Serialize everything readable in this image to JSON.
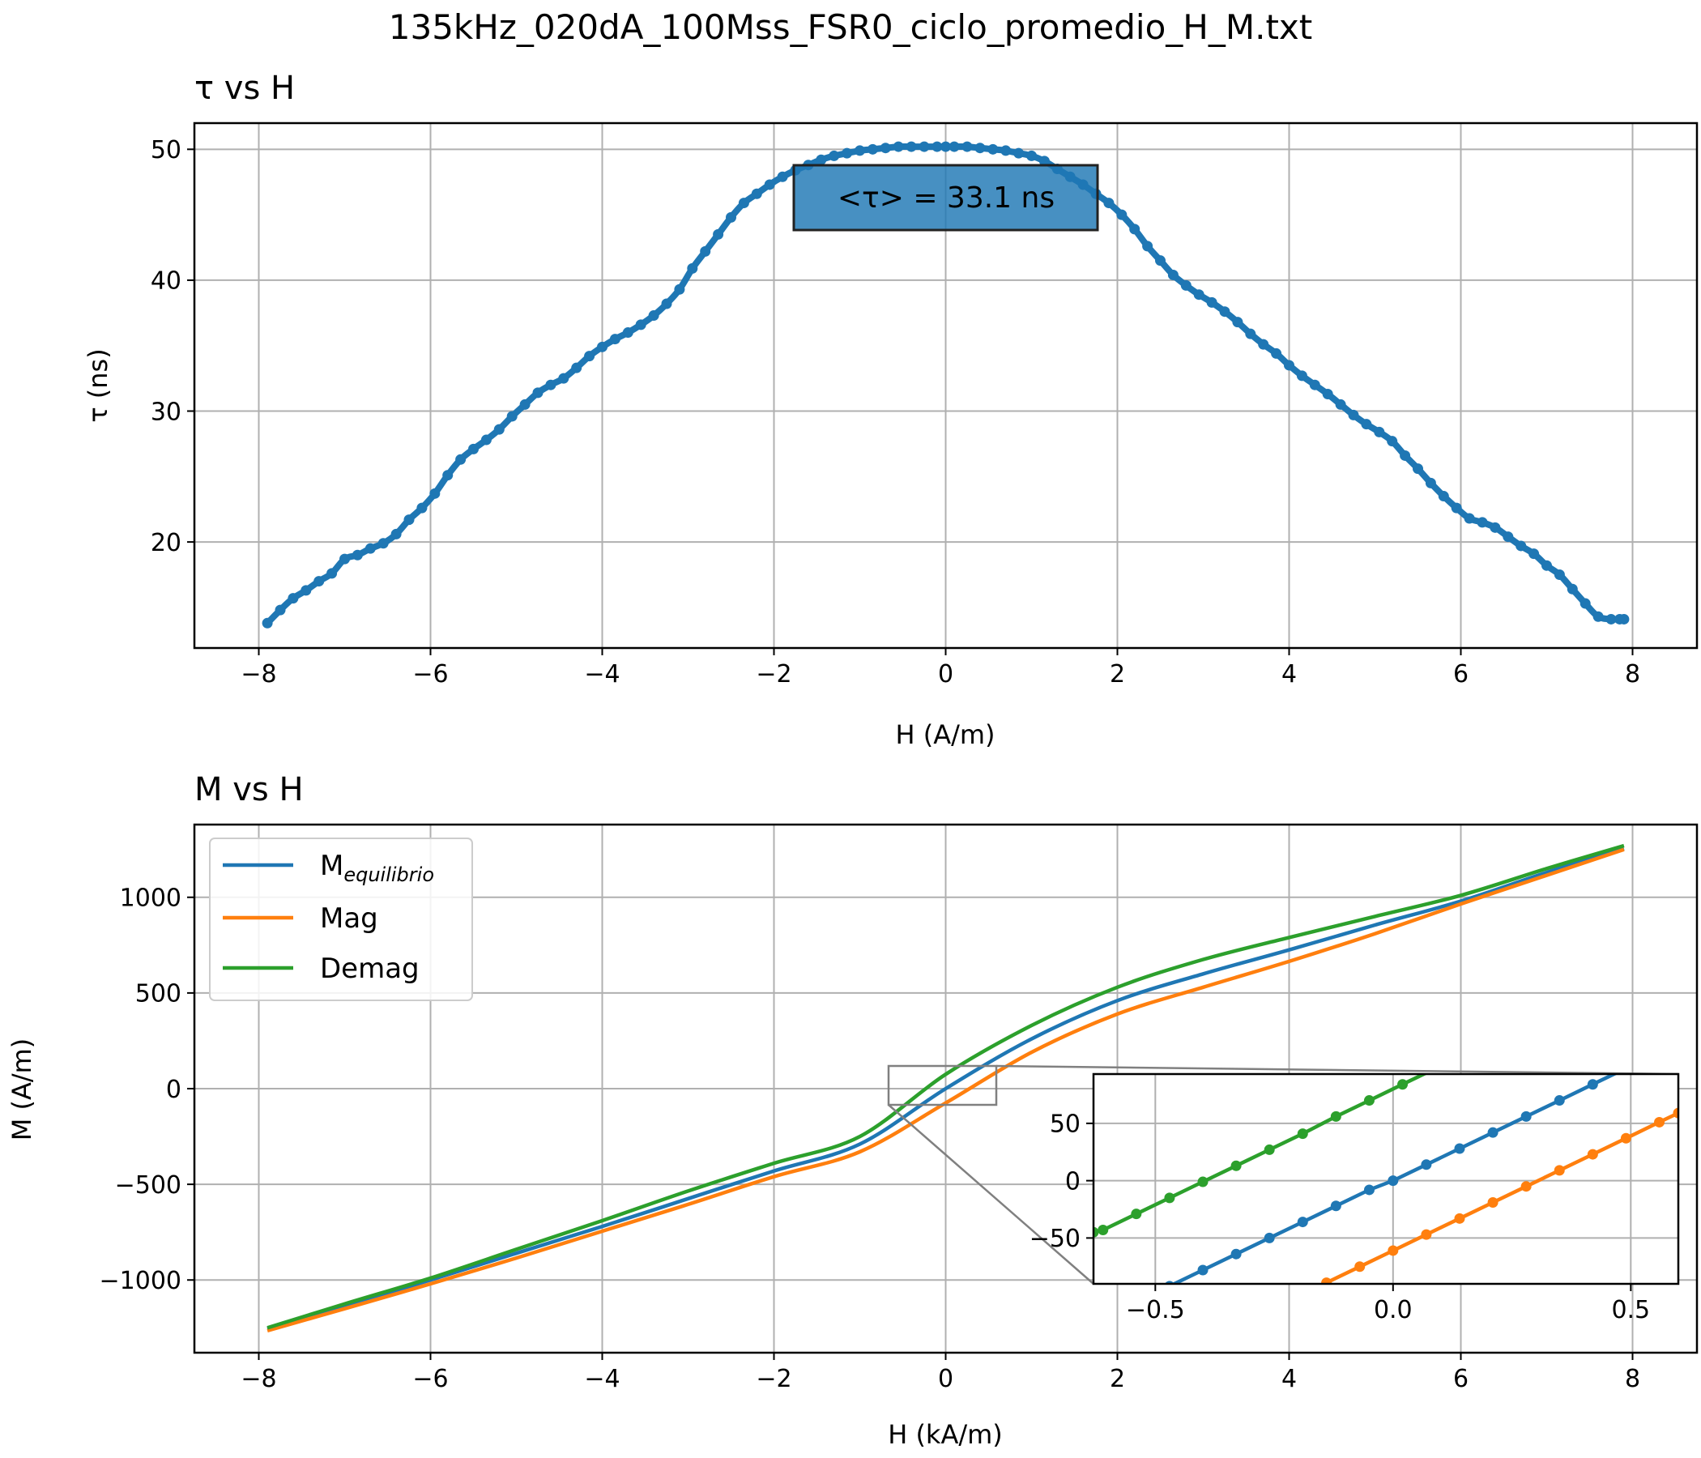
{
  "suptitle": "135kHz_020dA_100Mss_FSR0_ciclo_promedio_H_M.txt",
  "colors": {
    "blue": "#1f77b4",
    "orange": "#ff7f0e",
    "green": "#2ca02c",
    "grid": "#b0b0b0"
  },
  "chart_data": [
    {
      "type": "scatter",
      "title": "τ vs H",
      "xlabel": "H (A/m)",
      "ylabel": "τ (ns)",
      "xlim": [
        -8.75,
        8.75
      ],
      "ylim": [
        11.9,
        52.0
      ],
      "xticks": [
        -8,
        -6,
        -4,
        -2,
        0,
        2,
        4,
        6,
        8
      ],
      "yticks": [
        20,
        30,
        40,
        50
      ],
      "grid": true,
      "annotation": "<τ> = 33.1 ns",
      "series": [
        {
          "color": "#1f77b4",
          "x": [
            -7.9,
            -7.75,
            -7.6,
            -7.45,
            -7.3,
            -7.15,
            -7.0,
            -6.85,
            -6.7,
            -6.55,
            -6.4,
            -6.25,
            -6.1,
            -5.95,
            -5.8,
            -5.65,
            -5.5,
            -5.35,
            -5.2,
            -5.05,
            -4.9,
            -4.75,
            -4.6,
            -4.45,
            -4.3,
            -4.15,
            -4.0,
            -3.85,
            -3.7,
            -3.55,
            -3.4,
            -3.25,
            -3.1,
            -2.95,
            -2.8,
            -2.65,
            -2.5,
            -2.35,
            -2.2,
            -2.05,
            -1.9,
            -1.75,
            -1.6,
            -1.45,
            -1.3,
            -1.15,
            -1.0,
            -0.85,
            -0.7,
            -0.55,
            -0.4,
            -0.25,
            -0.1,
            0.0,
            0.1,
            0.25,
            0.4,
            0.55,
            0.7,
            0.85,
            1.0,
            1.15,
            1.3,
            1.45,
            1.6,
            1.75,
            1.9,
            2.05,
            2.2,
            2.35,
            2.5,
            2.65,
            2.8,
            2.95,
            3.1,
            3.25,
            3.4,
            3.55,
            3.7,
            3.85,
            4.0,
            4.15,
            4.3,
            4.45,
            4.6,
            4.75,
            4.9,
            5.05,
            5.2,
            5.35,
            5.5,
            5.65,
            5.8,
            5.95,
            6.1,
            6.25,
            6.4,
            6.55,
            6.7,
            6.85,
            7.0,
            7.15,
            7.3,
            7.45,
            7.6,
            7.75,
            7.85,
            7.9
          ],
          "y": [
            13.8,
            14.8,
            15.7,
            16.3,
            17.0,
            17.6,
            18.7,
            19.0,
            19.5,
            19.9,
            20.6,
            21.7,
            22.6,
            23.7,
            25.1,
            26.3,
            27.1,
            27.8,
            28.6,
            29.6,
            30.5,
            31.4,
            32.0,
            32.5,
            33.3,
            34.2,
            34.9,
            35.5,
            36.0,
            36.6,
            37.3,
            38.2,
            39.3,
            40.9,
            42.2,
            43.5,
            44.8,
            45.9,
            46.6,
            47.3,
            47.9,
            48.4,
            48.8,
            49.2,
            49.5,
            49.7,
            49.9,
            50.0,
            50.1,
            50.2,
            50.2,
            50.2,
            50.2,
            50.2,
            50.2,
            50.2,
            50.1,
            50.0,
            49.9,
            49.7,
            49.5,
            49.1,
            48.5,
            47.9,
            47.3,
            46.6,
            45.9,
            45.0,
            43.9,
            42.6,
            41.5,
            40.4,
            39.6,
            38.9,
            38.3,
            37.6,
            36.8,
            35.9,
            35.1,
            34.4,
            33.5,
            32.7,
            32.0,
            31.3,
            30.5,
            29.7,
            29.0,
            28.4,
            27.7,
            26.6,
            25.6,
            24.5,
            23.5,
            22.6,
            21.8,
            21.5,
            21.1,
            20.4,
            19.7,
            19.1,
            18.2,
            17.5,
            16.4,
            15.3,
            14.3,
            14.1,
            14.1,
            14.1
          ]
        }
      ]
    },
    {
      "type": "line",
      "title": "M vs H",
      "xlabel": "H (kA/m)",
      "ylabel": "M (A/m)",
      "xlim": [
        -8.75,
        8.75
      ],
      "ylim": [
        -1380,
        1380
      ],
      "xticks": [
        -8,
        -6,
        -4,
        -2,
        0,
        2,
        4,
        6,
        8
      ],
      "yticks": [
        -1000,
        -500,
        0,
        500,
        1000
      ],
      "grid": true,
      "legend_position": "upper-left",
      "series": [
        {
          "name": "M",
          "name_sub": "equilibrio",
          "color": "#1f77b4",
          "x": [
            -7.9,
            -7,
            -6,
            -5,
            -4,
            -3,
            -2,
            -1,
            0,
            1,
            2,
            3,
            4,
            5,
            6,
            7,
            7.9
          ],
          "y": [
            -1255,
            -1135,
            -1000,
            -860,
            -720,
            -575,
            -430,
            -290,
            0,
            260,
            460,
            600,
            725,
            855,
            980,
            1130,
            1255
          ]
        },
        {
          "name": "Mag",
          "color": "#ff7f0e",
          "x": [
            -7.9,
            -7,
            -6,
            -5,
            -4,
            -3,
            -2,
            -1,
            0,
            1,
            2,
            3,
            4,
            5,
            6,
            7,
            7.9
          ],
          "y": [
            -1265,
            -1150,
            -1020,
            -885,
            -745,
            -605,
            -460,
            -330,
            -75,
            190,
            390,
            530,
            665,
            810,
            965,
            1115,
            1250
          ]
        },
        {
          "name": "Demag",
          "color": "#2ca02c",
          "x": [
            -7.9,
            -7,
            -6,
            -5,
            -4,
            -3,
            -2,
            -1,
            0,
            1,
            2,
            3,
            4,
            5,
            6,
            7,
            7.9
          ],
          "y": [
            -1250,
            -1125,
            -990,
            -840,
            -690,
            -535,
            -390,
            -250,
            75,
            330,
            530,
            675,
            790,
            900,
            1010,
            1150,
            1270
          ]
        }
      ],
      "inset": {
        "xlim": [
          -0.63,
          0.6
        ],
        "ylim": [
          -90,
          93
        ],
        "xticks": [
          -0.5,
          0.0,
          0.5
        ],
        "xtick_labels": [
          "−0.5",
          "0.0",
          "0.5"
        ],
        "yticks": [
          -50,
          0,
          50
        ],
        "grid": true,
        "series": [
          {
            "color": "#2ca02c",
            "x": [
              -0.63,
              -0.61,
              -0.54,
              -0.47,
              -0.4,
              -0.33,
              -0.26,
              -0.19,
              -0.12,
              -0.05,
              0.02,
              0.09,
              0.15
            ],
            "y": [
              -45,
              -43,
              -29,
              -15,
              -1,
              13,
              27,
              41,
              56,
              70,
              84,
              98,
              110
            ]
          },
          {
            "color": "#1f77b4",
            "x": [
              -0.54,
              -0.47,
              -0.4,
              -0.33,
              -0.26,
              -0.19,
              -0.12,
              -0.05,
              0.0,
              0.07,
              0.14,
              0.21,
              0.28,
              0.35,
              0.42,
              0.49,
              0.51
            ],
            "y": [
              -106,
              -92,
              -78,
              -64,
              -50,
              -36,
              -22,
              -8,
              0,
              14,
              28,
              42,
              56,
              70,
              84,
              98,
              102
            ]
          },
          {
            "color": "#ff7f0e",
            "x": [
              -0.14,
              -0.07,
              0.0,
              0.07,
              0.14,
              0.21,
              0.28,
              0.35,
              0.42,
              0.49,
              0.56,
              0.6
            ],
            "y": [
              -89,
              -75,
              -61,
              -47,
              -33,
              -19,
              -5,
              9,
              23,
              37,
              51,
              59
            ]
          }
        ]
      }
    }
  ]
}
